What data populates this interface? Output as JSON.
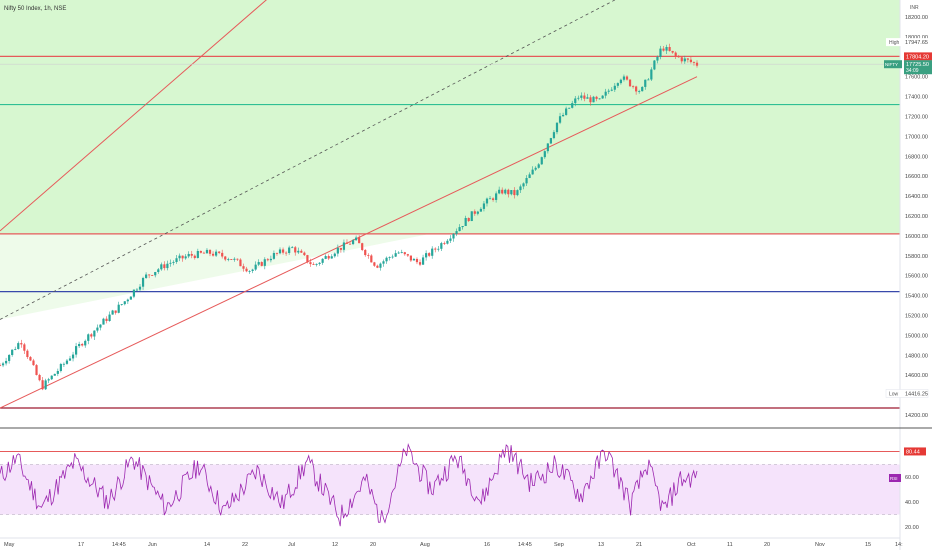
{
  "header": {
    "title": "Nifty 50 Index, 1h, NSE"
  },
  "colors": {
    "up": "#26a69a",
    "down": "#ef5350",
    "channel_fill_upper": "#d7f7d0",
    "channel_fill_lower": "#eefbea",
    "rsi_band_fill": "#f5e3fb",
    "rsi_line": "#9c27b0",
    "red_line": "#e65a5a",
    "green_line": "#2fbf94",
    "blue_line": "#3949ab",
    "dark_red_line": "#9e1b32",
    "price_badge": "#3aa081",
    "level_badge": "#e53935",
    "rsi_badge": "#9c27b0"
  },
  "badges": {
    "currency": "INR",
    "high_label": "High",
    "high_value": "17947.65",
    "level_value": "17804.20",
    "symbol": "NIFTY",
    "last_value": "17725.50",
    "last_sub": "34:09",
    "low_label": "Low",
    "low_value": "14416.25",
    "rsi_level_value": "80.44",
    "rsi_label": "RSI"
  },
  "chart_data": [
    {
      "type": "candlestick",
      "title": "Nifty 50 Index, 1h, NSE",
      "y_ticks": [
        18200,
        18000,
        17800,
        17600,
        17400,
        17200,
        17000,
        16800,
        16600,
        16400,
        16200,
        16000,
        15800,
        15600,
        15400,
        15200,
        15000,
        14800,
        14600,
        14400,
        14200
      ],
      "ylim": [
        14170,
        18350
      ],
      "x_ticks": [
        "May",
        "17",
        "14:45",
        "Jun",
        "14",
        "22",
        "Jul",
        "12",
        "20",
        "Aug",
        "16",
        "14:45",
        "Sep",
        "13",
        "21",
        "Oct",
        "11",
        "20",
        "Nov",
        "15",
        "14:"
      ],
      "price_path": [
        [
          0,
          14700
        ],
        [
          0.03,
          14950
        ],
        [
          0.06,
          14480
        ],
        [
          0.09,
          14700
        ],
        [
          0.12,
          14950
        ],
        [
          0.15,
          15150
        ],
        [
          0.18,
          15350
        ],
        [
          0.21,
          15600
        ],
        [
          0.24,
          15720
        ],
        [
          0.27,
          15800
        ],
        [
          0.3,
          15830
        ],
        [
          0.33,
          15780
        ],
        [
          0.36,
          15650
        ],
        [
          0.39,
          15800
        ],
        [
          0.42,
          15880
        ],
        [
          0.45,
          15700
        ],
        [
          0.48,
          15850
        ],
        [
          0.51,
          15960
        ],
        [
          0.54,
          15700
        ],
        [
          0.57,
          15840
        ],
        [
          0.6,
          15730
        ],
        [
          0.63,
          15900
        ],
        [
          0.66,
          16100
        ],
        [
          0.69,
          16300
        ],
        [
          0.72,
          16450
        ],
        [
          0.74,
          16420
        ],
        [
          0.77,
          16700
        ],
        [
          0.8,
          17150
        ],
        [
          0.83,
          17400
        ],
        [
          0.86,
          17350
        ],
        [
          0.89,
          17600
        ],
        [
          0.92,
          17450
        ],
        [
          0.95,
          17900
        ],
        [
          0.97,
          17800
        ],
        [
          1.0,
          17725
        ]
      ],
      "horizontal_levels": [
        {
          "value": 17804.2,
          "color": "red"
        },
        {
          "value": 17320,
          "color": "green"
        },
        {
          "value": 16020,
          "color": "red"
        },
        {
          "value": 15440,
          "color": "blue"
        },
        {
          "value": 14270,
          "color": "dark red"
        }
      ],
      "channel": {
        "lower_line": [
          [
            0,
            14270
          ],
          [
            1,
            17600
          ]
        ],
        "upper_line": [
          [
            0,
            16050
          ],
          [
            0.65,
            20000
          ]
        ],
        "mid_line": [
          [
            0,
            15160
          ],
          [
            1,
            18800
          ]
        ]
      },
      "high": 17947.65,
      "low": 14416.25,
      "last": 17725.5
    },
    {
      "type": "line",
      "series": [
        {
          "name": "RSI"
        }
      ],
      "y_ticks": [
        80,
        60,
        40,
        20
      ],
      "ylim": [
        15,
        90
      ],
      "band": [
        30,
        70
      ],
      "level": 80.44,
      "rsi_path": [
        [
          0,
          60
        ],
        [
          0.02,
          75
        ],
        [
          0.05,
          35
        ],
        [
          0.09,
          72
        ],
        [
          0.13,
          40
        ],
        [
          0.16,
          75
        ],
        [
          0.2,
          35
        ],
        [
          0.24,
          70
        ],
        [
          0.27,
          32
        ],
        [
          0.31,
          65
        ],
        [
          0.34,
          38
        ],
        [
          0.37,
          72
        ],
        [
          0.41,
          28
        ],
        [
          0.44,
          58
        ],
        [
          0.46,
          25
        ],
        [
          0.49,
          82
        ],
        [
          0.52,
          50
        ],
        [
          0.55,
          76
        ],
        [
          0.58,
          40
        ],
        [
          0.61,
          84
        ],
        [
          0.64,
          55
        ],
        [
          0.67,
          70
        ],
        [
          0.7,
          45
        ],
        [
          0.73,
          81
        ],
        [
          0.76,
          38
        ],
        [
          0.78,
          70
        ],
        [
          0.8,
          33
        ],
        [
          0.82,
          58
        ],
        [
          0.84,
          60
        ]
      ]
    }
  ]
}
